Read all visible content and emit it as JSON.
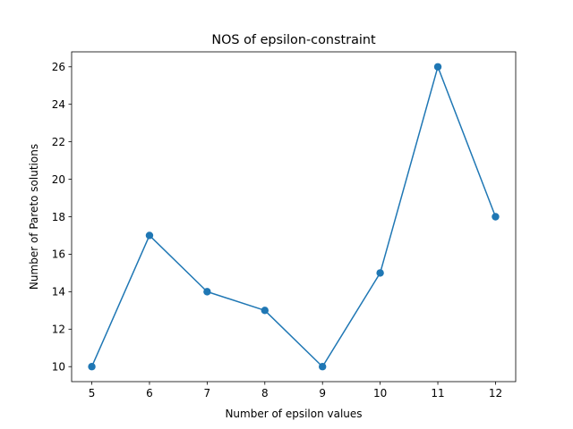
{
  "chart_data": {
    "type": "line",
    "title": "NOS of epsilon-constraint",
    "xlabel": "Number of epsilon values",
    "ylabel": "Number of Pareto solutions",
    "x": [
      5,
      6,
      7,
      8,
      9,
      10,
      11,
      12
    ],
    "series": [
      {
        "values": [
          10,
          17,
          14,
          13,
          10,
          15,
          26,
          18
        ],
        "marker": "circle"
      }
    ],
    "xticks": [
      "5",
      "6",
      "7",
      "8",
      "9",
      "10",
      "11",
      "12"
    ],
    "yticks": [
      "10",
      "12",
      "14",
      "16",
      "18",
      "20",
      "22",
      "24",
      "26"
    ],
    "xlim": [
      4.65,
      12.35
    ],
    "ylim": [
      9.2,
      26.8
    ],
    "grid": false,
    "colors": {
      "line": "#1f77b4",
      "axes": "#000000"
    }
  }
}
